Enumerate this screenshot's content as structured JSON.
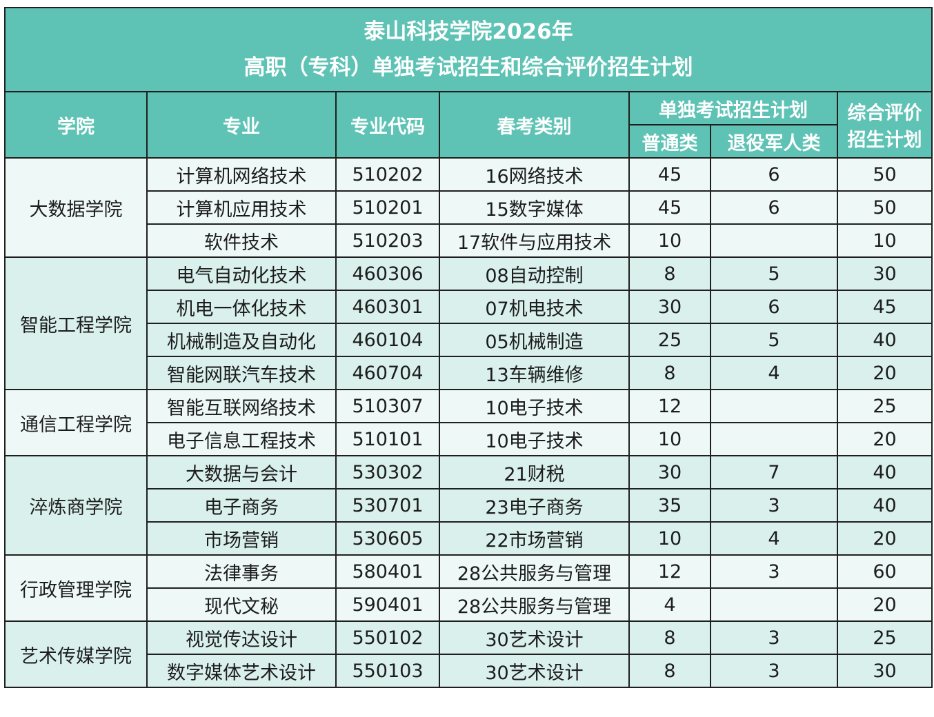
{
  "title": {
    "line1": "泰山科技学院2026年",
    "line2": "高职（专科）单独考试招生和综合评价招生计划"
  },
  "headers": {
    "college": "学院",
    "major": "专业",
    "code": "专业代码",
    "spring_category": "春考类别",
    "single_exam_plan": "单独考试招生计划",
    "ordinary": "普通类",
    "veteran": "退役军人类",
    "comprehensive_line1": "综合评价",
    "comprehensive_line2": "招生计划"
  },
  "colors": {
    "header_bg": "#5ec3b5",
    "row_light": "#eef9f7",
    "row_tint": "#d9f0ec"
  },
  "colleges": [
    {
      "name": "大数据学院",
      "rows": [
        {
          "major": "计算机网络技术",
          "code": "510202",
          "category": "16网络技术",
          "ordinary": "45",
          "veteran": "6",
          "comprehensive": "50"
        },
        {
          "major": "计算机应用技术",
          "code": "510201",
          "category": "15数字媒体",
          "ordinary": "45",
          "veteran": "6",
          "comprehensive": "50"
        },
        {
          "major": "软件技术",
          "code": "510203",
          "category": "17软件与应用技术",
          "ordinary": "10",
          "veteran": "",
          "comprehensive": "10"
        }
      ]
    },
    {
      "name": "智能工程学院",
      "rows": [
        {
          "major": "电气自动化技术",
          "code": "460306",
          "category": "08自动控制",
          "ordinary": "8",
          "veteran": "5",
          "comprehensive": "30"
        },
        {
          "major": "机电一体化技术",
          "code": "460301",
          "category": "07机电技术",
          "ordinary": "30",
          "veteran": "6",
          "comprehensive": "45"
        },
        {
          "major": "机械制造及自动化",
          "code": "460104",
          "category": "05机械制造",
          "ordinary": "25",
          "veteran": "5",
          "comprehensive": "40"
        },
        {
          "major": "智能网联汽车技术",
          "code": "460704",
          "category": "13车辆维修",
          "ordinary": "8",
          "veteran": "4",
          "comprehensive": "20"
        }
      ]
    },
    {
      "name": "通信工程学院",
      "rows": [
        {
          "major": "智能互联网络技术",
          "code": "510307",
          "category": "10电子技术",
          "ordinary": "12",
          "veteran": "",
          "comprehensive": "25"
        },
        {
          "major": "电子信息工程技术",
          "code": "510101",
          "category": "10电子技术",
          "ordinary": "10",
          "veteran": "",
          "comprehensive": "20"
        }
      ]
    },
    {
      "name": "淬炼商学院",
      "rows": [
        {
          "major": "大数据与会计",
          "code": "530302",
          "category": "21财税",
          "ordinary": "30",
          "veteran": "7",
          "comprehensive": "40"
        },
        {
          "major": "电子商务",
          "code": "530701",
          "category": "23电子商务",
          "ordinary": "35",
          "veteran": "3",
          "comprehensive": "40"
        },
        {
          "major": "市场营销",
          "code": "530605",
          "category": "22市场营销",
          "ordinary": "10",
          "veteran": "4",
          "comprehensive": "20"
        }
      ]
    },
    {
      "name": "行政管理学院",
      "rows": [
        {
          "major": "法律事务",
          "code": "580401",
          "category": "28公共服务与管理",
          "ordinary": "12",
          "veteran": "3",
          "comprehensive": "60"
        },
        {
          "major": "现代文秘",
          "code": "590401",
          "category": "28公共服务与管理",
          "ordinary": "4",
          "veteran": "",
          "comprehensive": "20"
        }
      ]
    },
    {
      "name": "艺术传媒学院",
      "rows": [
        {
          "major": "视觉传达设计",
          "code": "550102",
          "category": "30艺术设计",
          "ordinary": "8",
          "veteran": "3",
          "comprehensive": "25"
        },
        {
          "major": "数字媒体艺术设计",
          "code": "550103",
          "category": "30艺术设计",
          "ordinary": "8",
          "veteran": "3",
          "comprehensive": "30"
        }
      ]
    }
  ]
}
